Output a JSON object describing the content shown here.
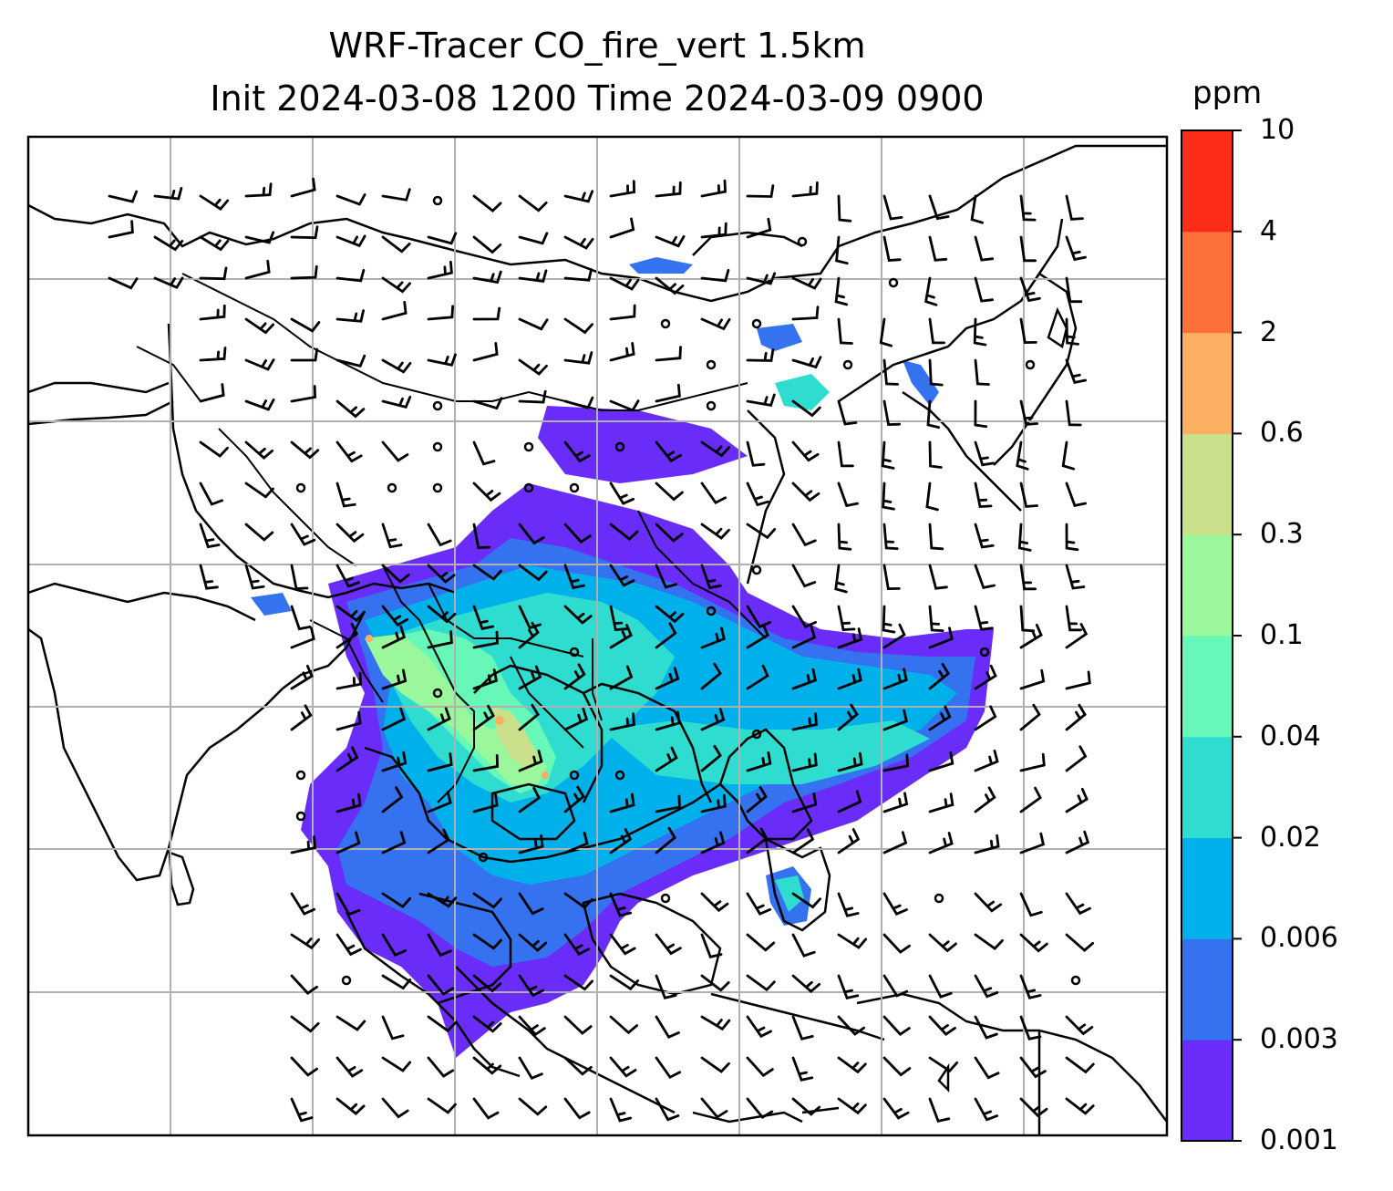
{
  "title_line1": "WRF-Tracer CO_fire_vert 1.5km",
  "title_line2": "Init 2024-03-08 1200 Time 2024-03-09 0900",
  "colorbar": {
    "unit": "ppm",
    "levels": [
      "0.001",
      "0.003",
      "0.006",
      "0.02",
      "0.04",
      "0.1",
      "0.3",
      "0.6",
      "2",
      "4",
      "10"
    ],
    "colors": [
      "#6a2cf8",
      "#3472f0",
      "#00b0ea",
      "#2fdcd0",
      "#66f7b9",
      "#9af79c",
      "#cbe08a",
      "#fcae61",
      "#fe7039",
      "#fd2c18"
    ]
  },
  "map": {
    "background": "#ffffff",
    "gridlines": true,
    "grid_color": "#b0b0b0",
    "features": [
      "coastlines",
      "country borders",
      "CO_fire_vert concentration shading",
      "wind barbs",
      "calm wind circles"
    ]
  }
}
